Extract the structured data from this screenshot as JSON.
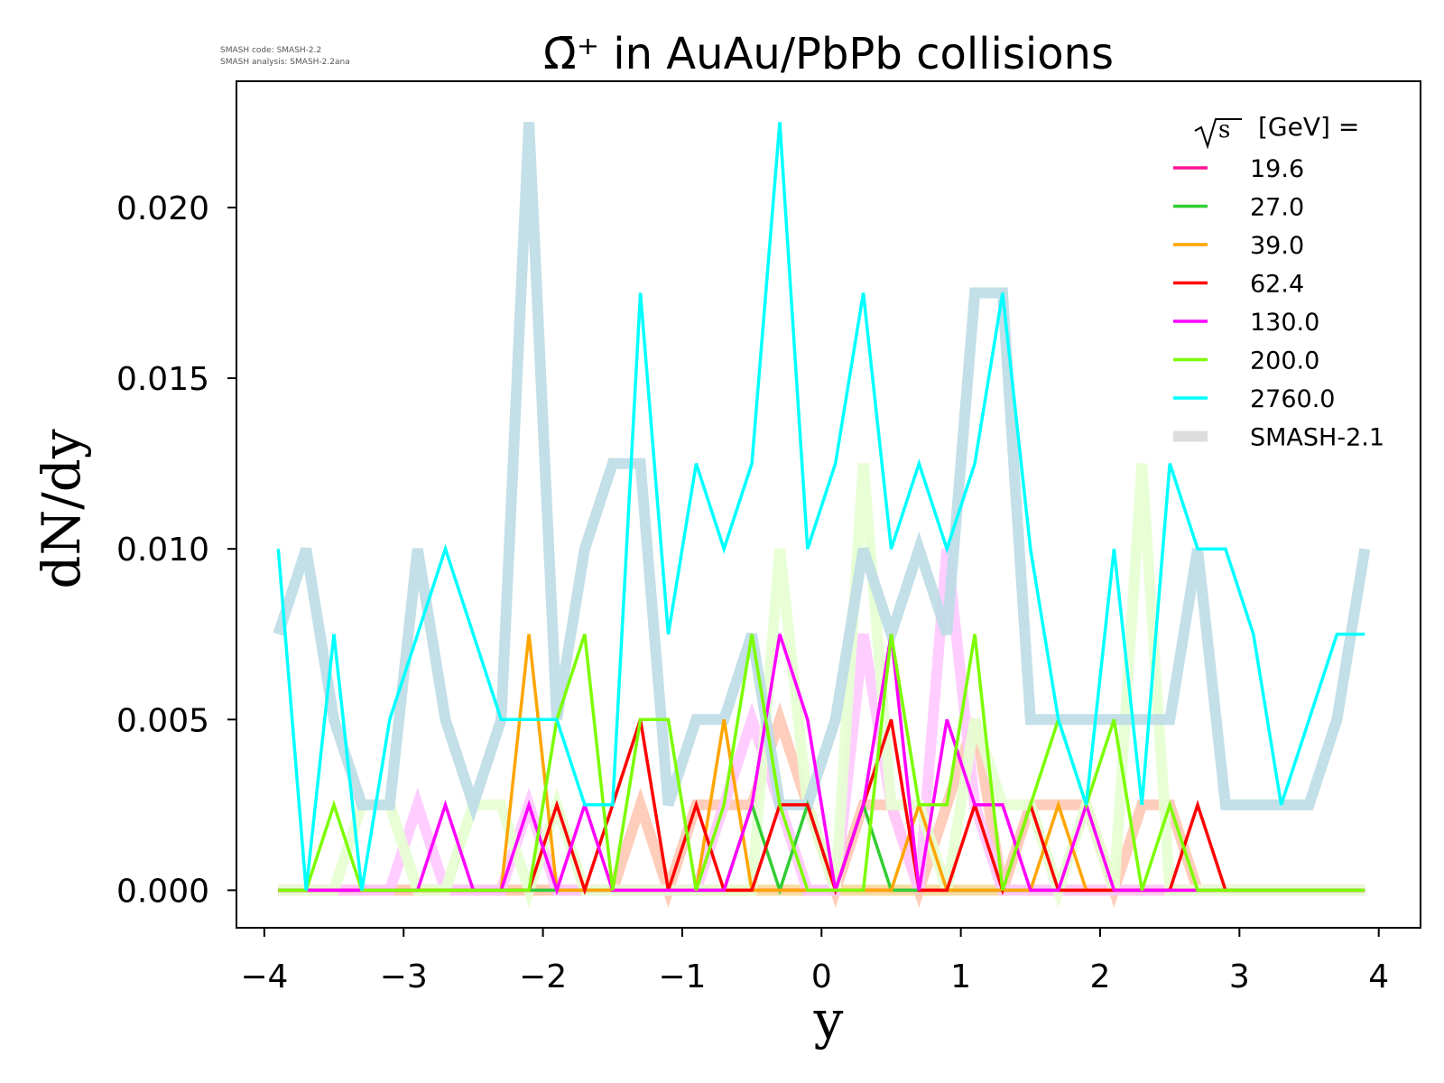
{
  "watermark": {
    "line1": "SMASH code:      SMASH-2.2",
    "line2": "SMASH analysis: SMASH-2.2ana"
  },
  "chart_data": {
    "type": "line",
    "title": "Ω̄⁺ in AuAu/PbPb collisions",
    "xlabel": "y",
    "ylabel": "dN/dy",
    "xlim": [
      -4.2,
      4.3
    ],
    "ylim": [
      -0.0011,
      0.0237
    ],
    "xticks": [
      -4,
      -3,
      -2,
      -1,
      0,
      1,
      2,
      3,
      4
    ],
    "xtick_labels": [
      "−4",
      "−3",
      "−2",
      "−1",
      "0",
      "1",
      "2",
      "3",
      "4"
    ],
    "yticks": [
      0.0,
      0.005,
      0.01,
      0.015,
      0.02
    ],
    "ytick_labels": [
      "0.000",
      "0.005",
      "0.010",
      "0.015",
      "0.020"
    ],
    "grid": false,
    "legend": {
      "placement": "top-right",
      "title_prefix": "s",
      "title_suffix": "[GeV] ="
    },
    "x": [
      -3.9,
      -3.7,
      -3.5,
      -3.3,
      -3.1,
      -2.9,
      -2.7,
      -2.5,
      -2.3,
      -2.1,
      -1.9,
      -1.7,
      -1.5,
      -1.3,
      -1.1,
      -0.9,
      -0.7,
      -0.5,
      -0.3,
      -0.1,
      0.1,
      0.3,
      0.5,
      0.7,
      0.9,
      1.1,
      1.3,
      1.5,
      1.7,
      1.9,
      2.1,
      2.3,
      2.5,
      2.7,
      2.9,
      3.1,
      3.3,
      3.5,
      3.7,
      3.9
    ],
    "series": [
      {
        "name": "19.6",
        "color": "#ff1493",
        "values": [
          0,
          0,
          0,
          0,
          0,
          0,
          0,
          0,
          0,
          0,
          0,
          0,
          0,
          0,
          0,
          0,
          0,
          0,
          0,
          0,
          0,
          0,
          0,
          0,
          0,
          0,
          0,
          0,
          0,
          0,
          0,
          0,
          0,
          0,
          0,
          0,
          0,
          0,
          0,
          0
        ]
      },
      {
        "name": "27.0",
        "color": "#32cd32",
        "values": [
          0,
          0,
          0,
          0,
          0,
          0,
          0,
          0,
          0,
          0,
          0,
          0,
          0,
          0,
          0,
          0,
          0,
          0.0025,
          0,
          0.0025,
          0,
          0.0025,
          0,
          0,
          0,
          0,
          0,
          0,
          0,
          0,
          0,
          0,
          0,
          0,
          0,
          0,
          0,
          0,
          0,
          0
        ]
      },
      {
        "name": "39.0",
        "color": "#ffa500",
        "values": [
          0,
          0,
          0,
          0,
          0,
          0,
          0,
          0,
          0,
          0.0075,
          0,
          0,
          0,
          0,
          0,
          0,
          0.005,
          0,
          0,
          0,
          0,
          0,
          0,
          0.0025,
          0,
          0,
          0,
          0,
          0.0025,
          0,
          0,
          0,
          0,
          0,
          0,
          0,
          0,
          0,
          0,
          0
        ]
      },
      {
        "name": "62.4",
        "color": "#ff0000",
        "values": [
          0,
          0,
          0,
          0,
          0,
          0,
          0,
          0,
          0,
          0,
          0.0025,
          0,
          0.0025,
          0.005,
          0,
          0.0025,
          0,
          0,
          0.0025,
          0.0025,
          0,
          0.0025,
          0.005,
          0,
          0,
          0.0025,
          0,
          0.0025,
          0,
          0,
          0,
          0,
          0,
          0.0025,
          0,
          0,
          0,
          0,
          0,
          0
        ]
      },
      {
        "name": "130.0",
        "color": "#ff00ff",
        "values": [
          0,
          0,
          0,
          0,
          0,
          0,
          0.0025,
          0,
          0,
          0.0025,
          0,
          0.0025,
          0,
          0,
          0,
          0,
          0,
          0.0025,
          0.0075,
          0.005,
          0,
          0.0025,
          0.0075,
          0,
          0.005,
          0.0025,
          0.0025,
          0,
          0,
          0.0025,
          0,
          0,
          0,
          0,
          0,
          0,
          0,
          0,
          0,
          0
        ]
      },
      {
        "name": "200.0",
        "color": "#7cfc00",
        "values": [
          0,
          0,
          0.0025,
          0,
          0,
          0,
          0,
          0,
          0,
          0,
          0.005,
          0.0075,
          0,
          0.005,
          0.005,
          0,
          0.0025,
          0.0075,
          0.0025,
          0,
          0,
          0,
          0.0075,
          0.0025,
          0.0025,
          0.0075,
          0,
          0.0025,
          0.005,
          0.0025,
          0.005,
          0,
          0.0025,
          0,
          0,
          0,
          0,
          0,
          0,
          0
        ]
      },
      {
        "name": "2760.0",
        "color": "#00ffff",
        "values": [
          0.01,
          0,
          0.0075,
          0,
          0.005,
          0.0075,
          0.01,
          0.0075,
          0.005,
          0.005,
          0.005,
          0.0025,
          0.0025,
          0.0175,
          0.0075,
          0.0125,
          0.01,
          0.0125,
          0.0225,
          0.01,
          0.0125,
          0.0175,
          0.01,
          0.0125,
          0.01,
          0.0125,
          0.0175,
          0.01,
          0.005,
          0.0025,
          0.01,
          0.0025,
          0.0125,
          0.01,
          0.01,
          0.0075,
          0.0025,
          0.005,
          0.0075,
          0.0075
        ]
      }
    ],
    "reference_series": {
      "name": "SMASH-2.1",
      "series": [
        {
          "color": "#ffb6c1",
          "values": [
            0,
            0,
            0,
            0,
            0,
            0,
            0,
            0,
            0,
            0,
            0,
            0,
            0,
            0,
            0,
            0,
            0,
            0,
            0,
            0,
            0,
            0,
            0,
            0,
            0,
            0,
            0,
            0,
            0,
            0,
            0,
            0,
            0,
            0,
            0,
            0,
            0,
            0,
            0,
            0
          ]
        },
        {
          "color": "#b4e6b4",
          "values": [
            0,
            0,
            0,
            0,
            0,
            0,
            0,
            0,
            0,
            0,
            0,
            0,
            0,
            0,
            0,
            0,
            0,
            0,
            0,
            0,
            0,
            0,
            0,
            0,
            0,
            0,
            0,
            0,
            0,
            0,
            0,
            0,
            0,
            0,
            0,
            0,
            0,
            0,
            0,
            0
          ]
        },
        {
          "color": "#ffdca0",
          "values": [
            0,
            0,
            0,
            0,
            0,
            0,
            0,
            0,
            0,
            0,
            0,
            0,
            0,
            0,
            0,
            0,
            0,
            0,
            0,
            0,
            0,
            0,
            0,
            0,
            0,
            0,
            0,
            0,
            0,
            0,
            0,
            0,
            0,
            0,
            0,
            0,
            0,
            0,
            0,
            0
          ]
        },
        {
          "color": "#ffc8b4",
          "values": [
            0,
            0,
            0,
            0,
            0,
            0,
            0,
            0,
            0,
            0,
            0,
            0,
            0,
            0.0025,
            0,
            0.0025,
            0.0025,
            0.0025,
            0.005,
            0.0025,
            0,
            0.0025,
            0.0025,
            0,
            0.0025,
            0.005,
            0,
            0.0025,
            0.0025,
            0.0025,
            0,
            0.0025,
            0.0025,
            0,
            0,
            0,
            0,
            0,
            0,
            0
          ]
        },
        {
          "color": "#ffc8ff",
          "values": [
            0,
            0,
            0,
            0,
            0,
            0.0025,
            0,
            0,
            0,
            0.0025,
            0,
            0,
            0,
            0,
            0,
            0,
            0.0025,
            0.005,
            0.0025,
            0,
            0,
            0.0075,
            0.0025,
            0,
            0.01,
            0.0025,
            0,
            0,
            0,
            0,
            0,
            0,
            0,
            0,
            0,
            0,
            0,
            0,
            0,
            0
          ]
        },
        {
          "color": "#e6ffd2",
          "values": [
            0,
            0,
            0,
            0.0025,
            0.0025,
            0,
            0,
            0.0025,
            0.0025,
            0,
            0.0025,
            0,
            0,
            0,
            0,
            0,
            0,
            0,
            0.01,
            0.0025,
            0,
            0.0125,
            0.0025,
            0.0025,
            0,
            0.005,
            0.0025,
            0.0025,
            0,
            0.0025,
            0,
            0.0125,
            0,
            0,
            0,
            0,
            0,
            0,
            0,
            0
          ]
        },
        {
          "color": "#bcdce6",
          "values": [
            0.0075,
            0.01,
            0.005,
            0.0025,
            0.0025,
            0.01,
            0.005,
            0.0025,
            0.005,
            0.0225,
            0.005,
            0.01,
            0.0125,
            0.0125,
            0.0025,
            0.005,
            0.005,
            0.0075,
            0.0025,
            0.0025,
            0.005,
            0.01,
            0.0075,
            0.01,
            0.0075,
            0.0175,
            0.0175,
            0.005,
            0.005,
            0.005,
            0.005,
            0.005,
            0.005,
            0.01,
            0.0025,
            0.0025,
            0.0025,
            0.0025,
            0.005,
            0.01
          ]
        }
      ]
    }
  }
}
